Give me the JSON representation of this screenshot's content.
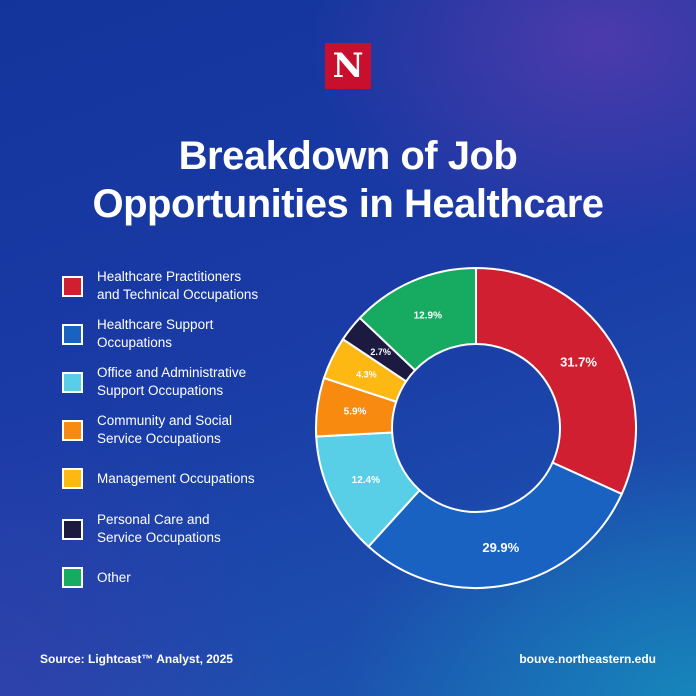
{
  "logo": {
    "letter": "N",
    "color": "#c8102e"
  },
  "title_lines": [
    "Breakdown of Job",
    "Opportunities in Healthcare"
  ],
  "chart_data": {
    "type": "pie",
    "title": "Breakdown of Job Opportunities in Healthcare",
    "donut": true,
    "legend_position": "left",
    "slices": [
      {
        "label_lines": [
          "Healthcare Practitioners",
          "and Technical Occupations"
        ],
        "value": 31.7,
        "display": "31.7%",
        "color": "#d01f31"
      },
      {
        "label_lines": [
          "Healthcare Support",
          "Occupations"
        ],
        "value": 29.9,
        "display": "29.9%",
        "color": "#1a62c2"
      },
      {
        "label_lines": [
          "Office and Administrative",
          "Support Occupations"
        ],
        "value": 12.4,
        "display": "12.4%",
        "color": "#58cfe6"
      },
      {
        "label_lines": [
          "Community and Social",
          "Service Occupations"
        ],
        "value": 5.9,
        "display": "5.9%",
        "color": "#f88a10"
      },
      {
        "label_lines": [
          "Management Occupations"
        ],
        "value": 4.3,
        "display": "4.3%",
        "color": "#fdb813"
      },
      {
        "label_lines": [
          "Personal Care and",
          "Service Occupations"
        ],
        "value": 2.7,
        "display": "2.7%",
        "color": "#1c1a40"
      },
      {
        "label_lines": [
          "Other"
        ],
        "value": 12.9,
        "display": "12.9%",
        "color": "#17ab61"
      }
    ]
  },
  "footer": {
    "source": "Source: Lightcast™ Analyst, 2025",
    "website": "bouve.northeastern.edu"
  }
}
